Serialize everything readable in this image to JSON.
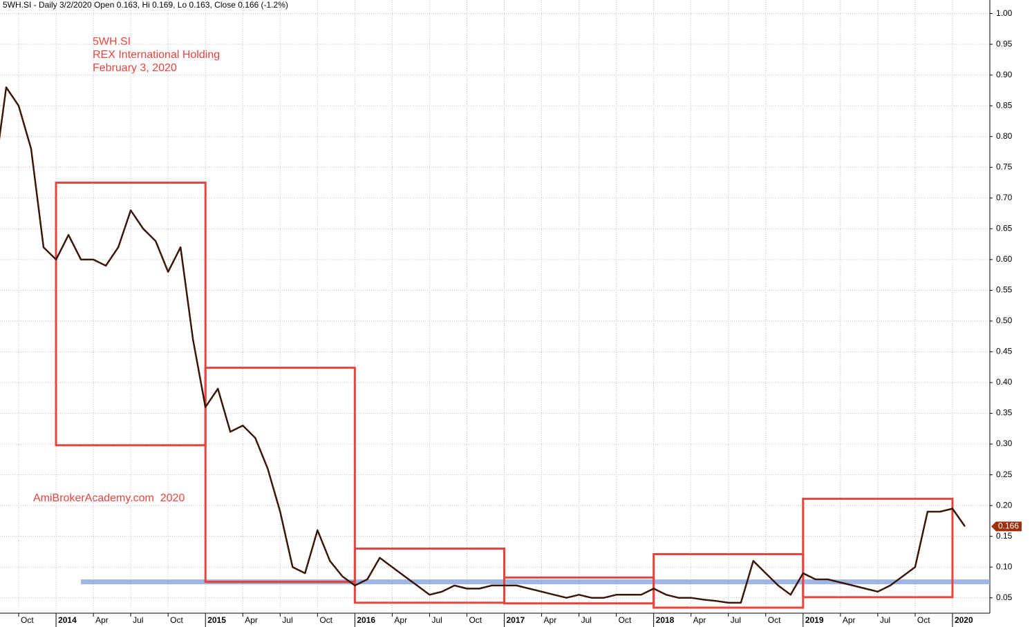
{
  "chart_data": {
    "type": "line",
    "title": "5WH.SI - Daily 3/2/2020 Open 0.163, Hi 0.169, Lo 0.163, Close 0.166 (-1.2%)",
    "annotations": [
      "5WH.SI",
      "REX International Holding",
      "February 3, 2020"
    ],
    "watermark": "AmiBrokerAcademy.com  2020",
    "x": [
      "2013-08",
      "2013-09",
      "2013-10",
      "2013-11",
      "2013-12",
      "2014-01",
      "2014-02",
      "2014-03",
      "2014-04",
      "2014-05",
      "2014-06",
      "2014-07",
      "2014-08",
      "2014-09",
      "2014-10",
      "2014-11",
      "2014-12",
      "2015-01",
      "2015-02",
      "2015-03",
      "2015-04",
      "2015-05",
      "2015-06",
      "2015-07",
      "2015-08",
      "2015-09",
      "2015-10",
      "2015-11",
      "2015-12",
      "2016-01",
      "2016-02",
      "2016-03",
      "2016-04",
      "2016-05",
      "2016-06",
      "2016-07",
      "2016-08",
      "2016-09",
      "2016-10",
      "2016-11",
      "2016-12",
      "2017-01",
      "2017-02",
      "2017-03",
      "2017-04",
      "2017-05",
      "2017-06",
      "2017-07",
      "2017-08",
      "2017-09",
      "2017-10",
      "2017-11",
      "2017-12",
      "2018-01",
      "2018-02",
      "2018-03",
      "2018-04",
      "2018-05",
      "2018-06",
      "2018-07",
      "2018-08",
      "2018-09",
      "2018-10",
      "2018-11",
      "2018-12",
      "2019-01",
      "2019-02",
      "2019-03",
      "2019-04",
      "2019-05",
      "2019-06",
      "2019-07",
      "2019-08",
      "2019-09",
      "2019-10",
      "2019-11",
      "2019-12",
      "2020-01",
      "2020-02"
    ],
    "series": [
      {
        "name": "5WH.SI",
        "color": "#3a1608",
        "values": [
          0.73,
          0.88,
          0.85,
          0.78,
          0.62,
          0.6,
          0.64,
          0.6,
          0.6,
          0.59,
          0.62,
          0.68,
          0.65,
          0.63,
          0.58,
          0.62,
          0.47,
          0.36,
          0.39,
          0.32,
          0.33,
          0.31,
          0.26,
          0.19,
          0.1,
          0.09,
          0.16,
          0.11,
          0.085,
          0.07,
          0.08,
          0.115,
          0.1,
          0.085,
          0.07,
          0.055,
          0.06,
          0.07,
          0.065,
          0.065,
          0.07,
          0.07,
          0.07,
          0.065,
          0.06,
          0.055,
          0.05,
          0.055,
          0.05,
          0.05,
          0.055,
          0.055,
          0.055,
          0.065,
          0.055,
          0.05,
          0.05,
          0.047,
          0.045,
          0.042,
          0.042,
          0.11,
          0.09,
          0.07,
          0.055,
          0.09,
          0.08,
          0.08,
          0.075,
          0.07,
          0.065,
          0.06,
          0.07,
          0.085,
          0.1,
          0.19,
          0.19,
          0.195,
          0.166
        ]
      }
    ],
    "last_price": 0.166,
    "last_price_color": "#a0300c",
    "boxes": [
      {
        "x0": "2014-01",
        "x1": "2015-01",
        "y0": 0.298,
        "y1": 0.725
      },
      {
        "x0": "2015-01",
        "x1": "2016-01",
        "y0": 0.076,
        "y1": 0.424
      },
      {
        "x0": "2016-01",
        "x1": "2017-01",
        "y0": 0.042,
        "y1": 0.13
      },
      {
        "x0": "2017-01",
        "x1": "2018-01",
        "y0": 0.041,
        "y1": 0.083
      },
      {
        "x0": "2018-01",
        "x1": "2019-01",
        "y0": 0.034,
        "y1": 0.121
      },
      {
        "x0": "2019-01",
        "x1": "2020-01",
        "y0": 0.051,
        "y1": 0.211
      }
    ],
    "box_color": "#e8443c",
    "support_line": {
      "value": 0.076,
      "from": "2014-03",
      "color": "#8fa8e0"
    },
    "range_line": {
      "value": 0.076,
      "from": "2015-01",
      "to": "2016-01",
      "color": "#9c1040"
    },
    "xlim": [
      "2013-08",
      "2020-04"
    ],
    "ylim": [
      0.025,
      1.022
    ],
    "xticks": [
      {
        "value": "2013-10",
        "label": "Oct"
      },
      {
        "value": "2014-01",
        "label": "2014"
      },
      {
        "value": "2014-04",
        "label": "Apr"
      },
      {
        "value": "2014-07",
        "label": "Jul"
      },
      {
        "value": "2014-10",
        "label": "Oct"
      },
      {
        "value": "2015-01",
        "label": "2015"
      },
      {
        "value": "2015-04",
        "label": "Apr"
      },
      {
        "value": "2015-07",
        "label": "Jul"
      },
      {
        "value": "2015-10",
        "label": "Oct"
      },
      {
        "value": "2016-01",
        "label": "2016"
      },
      {
        "value": "2016-04",
        "label": "Apr"
      },
      {
        "value": "2016-07",
        "label": "Jul"
      },
      {
        "value": "2016-10",
        "label": "Oct"
      },
      {
        "value": "2017-01",
        "label": "2017"
      },
      {
        "value": "2017-04",
        "label": "Apr"
      },
      {
        "value": "2017-07",
        "label": "Jul"
      },
      {
        "value": "2017-10",
        "label": "Oct"
      },
      {
        "value": "2018-01",
        "label": "2018"
      },
      {
        "value": "2018-04",
        "label": "Apr"
      },
      {
        "value": "2018-07",
        "label": "Jul"
      },
      {
        "value": "2018-10",
        "label": "Oct"
      },
      {
        "value": "2019-01",
        "label": "2019"
      },
      {
        "value": "2019-04",
        "label": "Apr"
      },
      {
        "value": "2019-07",
        "label": "Jul"
      },
      {
        "value": "2019-10",
        "label": "Oct"
      },
      {
        "value": "2020-01",
        "label": "2020"
      }
    ],
    "yticks": [
      {
        "value": 0.05,
        "label": "0.05"
      },
      {
        "value": 0.1,
        "label": "0.10"
      },
      {
        "value": 0.15,
        "label": "0.15"
      },
      {
        "value": 0.2,
        "label": "0.20"
      },
      {
        "value": 0.25,
        "label": "0.25"
      },
      {
        "value": 0.3,
        "label": "0.30"
      },
      {
        "value": 0.35,
        "label": "0.35"
      },
      {
        "value": 0.4,
        "label": "0.40"
      },
      {
        "value": 0.45,
        "label": "0.45"
      },
      {
        "value": 0.5,
        "label": "0.50"
      },
      {
        "value": 0.55,
        "label": "0.55"
      },
      {
        "value": 0.6,
        "label": "0.60"
      },
      {
        "value": 0.65,
        "label": "0.65"
      },
      {
        "value": 0.7,
        "label": "0.70"
      },
      {
        "value": 0.75,
        "label": "0.75"
      },
      {
        "value": 0.8,
        "label": "0.80"
      },
      {
        "value": 0.85,
        "label": "0.85"
      },
      {
        "value": 0.9,
        "label": "0.90"
      },
      {
        "value": 0.95,
        "label": "0.95"
      },
      {
        "value": 1.0,
        "label": "1.00"
      }
    ],
    "grid": true
  }
}
